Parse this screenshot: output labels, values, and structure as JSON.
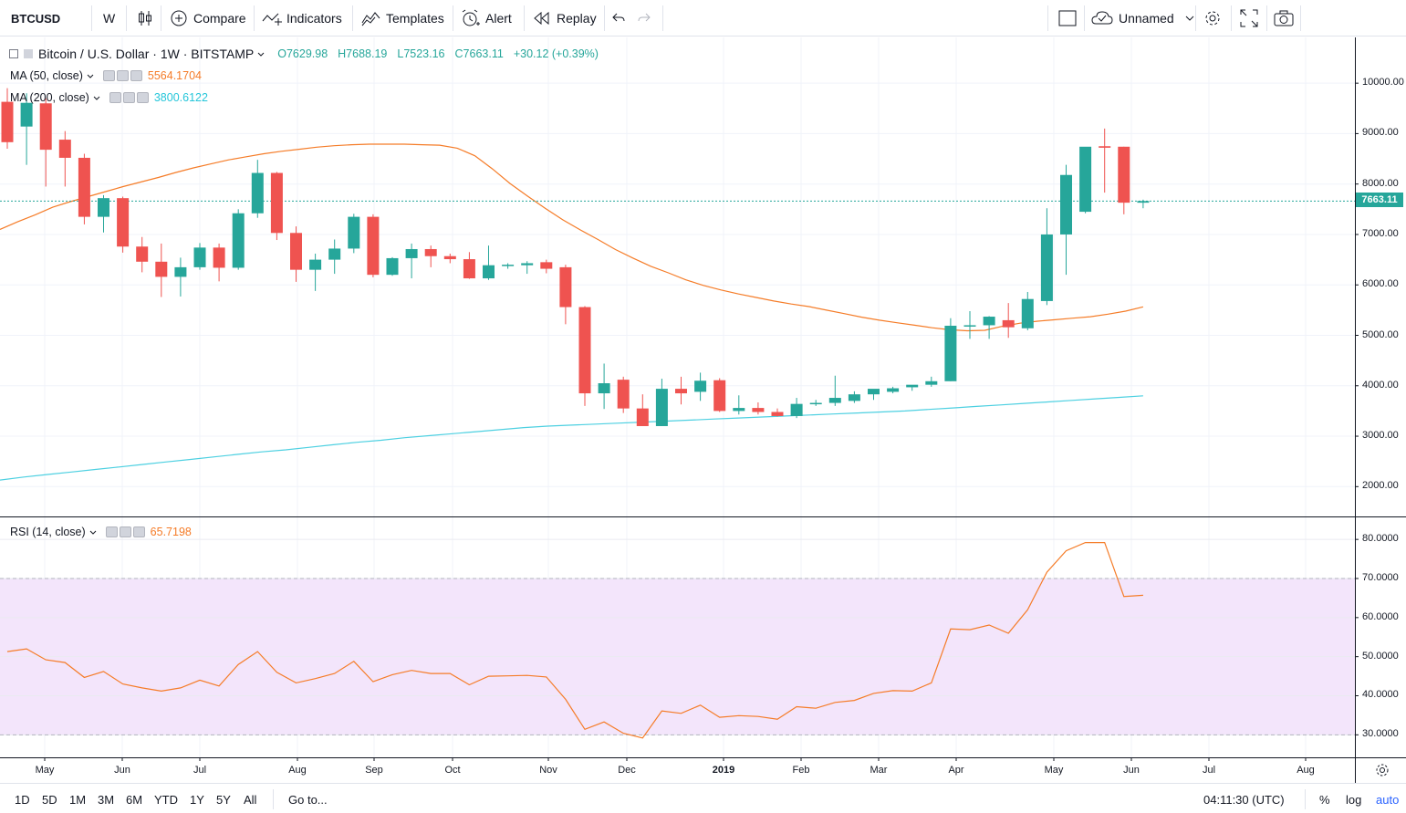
{
  "toolbar": {
    "symbol": "BTCUSD",
    "interval": "W",
    "compare": "Compare",
    "indicators": "Indicators",
    "templates": "Templates",
    "alert": "Alert",
    "replay": "Replay",
    "layout_name": "Unnamed"
  },
  "legend": {
    "title": "Bitcoin / U.S. Dollar · 1W · BITSTAMP",
    "open": "O7629.98",
    "high": "H7688.19",
    "low": "L7523.16",
    "close": "C7663.11",
    "change": "+30.12 (+0.39%)",
    "ma50_label": "MA (50, close)",
    "ma50_value": "5564.1704",
    "ma200_label": "MA (200, close)",
    "ma200_value": "3800.6122",
    "rsi_label": "RSI (14, close)",
    "rsi_value": "65.7198"
  },
  "colors": {
    "up": "#26a69a",
    "down": "#ef5350",
    "ma50": "#f57c28",
    "ma200": "#4dd0e1",
    "rsi": "#f57c28",
    "rsi_band": "#f3e5fb"
  },
  "last_price_label": "7663.11",
  "price_axis": [
    "10000.00",
    "9000.00",
    "8000.00",
    "7000.00",
    "6000.00",
    "5000.00",
    "4000.00",
    "3000.00",
    "2000.00"
  ],
  "rsi_axis": [
    "80.0000",
    "70.0000",
    "60.0000",
    "50.0000",
    "40.0000",
    "30.0000"
  ],
  "time_axis": [
    "May",
    "Jun",
    "Jul",
    "Aug",
    "Sep",
    "Oct",
    "Nov",
    "Dec",
    "2019",
    "Feb",
    "Mar",
    "Apr",
    "May",
    "Jun",
    "Jul",
    "Aug"
  ],
  "bottom": {
    "ranges": [
      "1D",
      "5D",
      "1M",
      "3M",
      "6M",
      "YTD",
      "1Y",
      "5Y",
      "All"
    ],
    "goto": "Go to...",
    "clock": "04:11:30 (UTC)",
    "percent": "%",
    "log": "log",
    "auto": "auto"
  },
  "chart_data": {
    "type": "candlestick",
    "title": "Bitcoin / U.S. Dollar · 1W · BITSTAMP",
    "x_unit": "week",
    "ylim": [
      1500,
      10700
    ],
    "candles": [
      [
        9630,
        9900,
        8700,
        8830
      ],
      [
        9140,
        9800,
        8380,
        9610
      ],
      [
        9600,
        9700,
        7950,
        8680
      ],
      [
        8880,
        9050,
        7950,
        8520
      ],
      [
        8520,
        8600,
        7200,
        7350
      ],
      [
        7350,
        7780,
        7040,
        7720
      ],
      [
        7720,
        7750,
        6640,
        6760
      ],
      [
        6760,
        6950,
        6250,
        6460
      ],
      [
        6460,
        6820,
        5760,
        6160
      ],
      [
        6160,
        6540,
        5770,
        6350
      ],
      [
        6350,
        6830,
        6300,
        6740
      ],
      [
        6740,
        6820,
        6070,
        6340
      ],
      [
        6340,
        7500,
        6300,
        7420
      ],
      [
        7420,
        8480,
        7330,
        8220
      ],
      [
        8220,
        8240,
        6890,
        7030
      ],
      [
        7030,
        7160,
        6060,
        6300
      ],
      [
        6300,
        6620,
        5880,
        6500
      ],
      [
        6500,
        6900,
        6220,
        6720
      ],
      [
        6720,
        7410,
        6630,
        7350
      ],
      [
        7350,
        7400,
        6150,
        6200
      ],
      [
        6200,
        6550,
        6180,
        6530
      ],
      [
        6530,
        6820,
        6130,
        6710
      ],
      [
        6710,
        6780,
        6350,
        6570
      ],
      [
        6570,
        6620,
        6430,
        6510
      ],
      [
        6510,
        6650,
        6120,
        6130
      ],
      [
        6130,
        6780,
        6100,
        6390
      ],
      [
        6390,
        6430,
        6320,
        6400
      ],
      [
        6390,
        6470,
        6220,
        6430
      ],
      [
        6450,
        6500,
        6230,
        6320
      ],
      [
        6350,
        6400,
        5220,
        5560
      ],
      [
        5560,
        5580,
        3600,
        3850
      ],
      [
        3850,
        4440,
        3540,
        4050
      ],
      [
        4120,
        4180,
        3460,
        3550
      ],
      [
        3550,
        3830,
        3200,
        3200
      ],
      [
        3200,
        4140,
        3200,
        3940
      ],
      [
        3940,
        4180,
        3630,
        3850
      ],
      [
        3880,
        4260,
        3700,
        4100
      ],
      [
        4110,
        4150,
        3480,
        3500
      ],
      [
        3500,
        3810,
        3430,
        3560
      ],
      [
        3560,
        3670,
        3430,
        3480
      ],
      [
        3480,
        3550,
        3390,
        3400
      ],
      [
        3400,
        3760,
        3360,
        3640
      ],
      [
        3640,
        3720,
        3600,
        3660
      ],
      [
        3660,
        4200,
        3600,
        3760
      ],
      [
        3700,
        3890,
        3660,
        3830
      ],
      [
        3830,
        3900,
        3720,
        3940
      ],
      [
        3880,
        3980,
        3850,
        3950
      ],
      [
        3970,
        4010,
        3900,
        4020
      ],
      [
        4020,
        4180,
        3980,
        4090
      ],
      [
        4090,
        5340,
        4090,
        5190
      ],
      [
        5190,
        5480,
        4930,
        5200
      ],
      [
        5200,
        5380,
        4930,
        5370
      ],
      [
        5300,
        5640,
        4950,
        5160
      ],
      [
        5140,
        5860,
        5100,
        5720
      ],
      [
        5680,
        7520,
        5600,
        7000
      ],
      [
        7000,
        8380,
        6200,
        8180
      ],
      [
        7450,
        8730,
        7420,
        8740
      ],
      [
        8750,
        9100,
        7830,
        8720
      ],
      [
        8740,
        8740,
        7400,
        7630
      ],
      [
        7630,
        7690,
        7520,
        7663
      ]
    ],
    "ma50": [
      7100,
      7250,
      7390,
      7540,
      7650,
      7750,
      7850,
      7950,
      8040,
      8130,
      8230,
      8320,
      8400,
      8480,
      8540,
      8600,
      8650,
      8690,
      8730,
      8760,
      8780,
      8790,
      8790,
      8790,
      8780,
      8770,
      8710,
      8560,
      8300,
      8010,
      7760,
      7520,
      7290,
      7090,
      6900,
      6700,
      6530,
      6370,
      6240,
      6100,
      5990,
      5900,
      5820,
      5750,
      5680,
      5620,
      5570,
      5500,
      5430,
      5360,
      5300,
      5250,
      5200,
      5150,
      5110,
      5090,
      5100,
      5180,
      5240,
      5280,
      5310,
      5340,
      5370,
      5420,
      5480,
      5564
    ],
    "ma200": [
      2130,
      2190,
      2240,
      2290,
      2340,
      2390,
      2440,
      2490,
      2540,
      2590,
      2640,
      2690,
      2730,
      2780,
      2830,
      2880,
      2920,
      2970,
      3010,
      3050,
      3090,
      3130,
      3170,
      3200,
      3220,
      3240,
      3260,
      3280,
      3300,
      3320,
      3340,
      3360,
      3380,
      3400,
      3420,
      3440,
      3460,
      3480,
      3500,
      3530,
      3560,
      3590,
      3620,
      3650,
      3680,
      3710,
      3740,
      3770,
      3800
    ],
    "rsi": [
      51.3,
      52.0,
      49.2,
      48.5,
      44.7,
      46.2,
      43.0,
      42.0,
      41.2,
      42.0,
      44.0,
      42.5,
      48.0,
      51.3,
      46.0,
      43.3,
      44.4,
      45.7,
      48.8,
      43.6,
      45.4,
      46.5,
      45.7,
      45.7,
      42.8,
      45.0,
      45.1,
      45.2,
      44.8,
      39.1,
      31.4,
      33.3,
      30.4,
      29.2,
      36.1,
      35.5,
      37.6,
      34.5,
      34.9,
      34.7,
      34.0,
      37.2,
      36.8,
      38.3,
      38.8,
      40.6,
      41.3,
      41.2,
      43.3,
      57.1,
      56.9,
      58.1,
      56.0,
      62.0,
      71.6,
      77.1,
      79.2,
      79.2,
      65.4,
      65.7
    ],
    "rsi_ylim": [
      26.5,
      85.0
    ],
    "rsi_band": [
      30,
      70
    ]
  }
}
